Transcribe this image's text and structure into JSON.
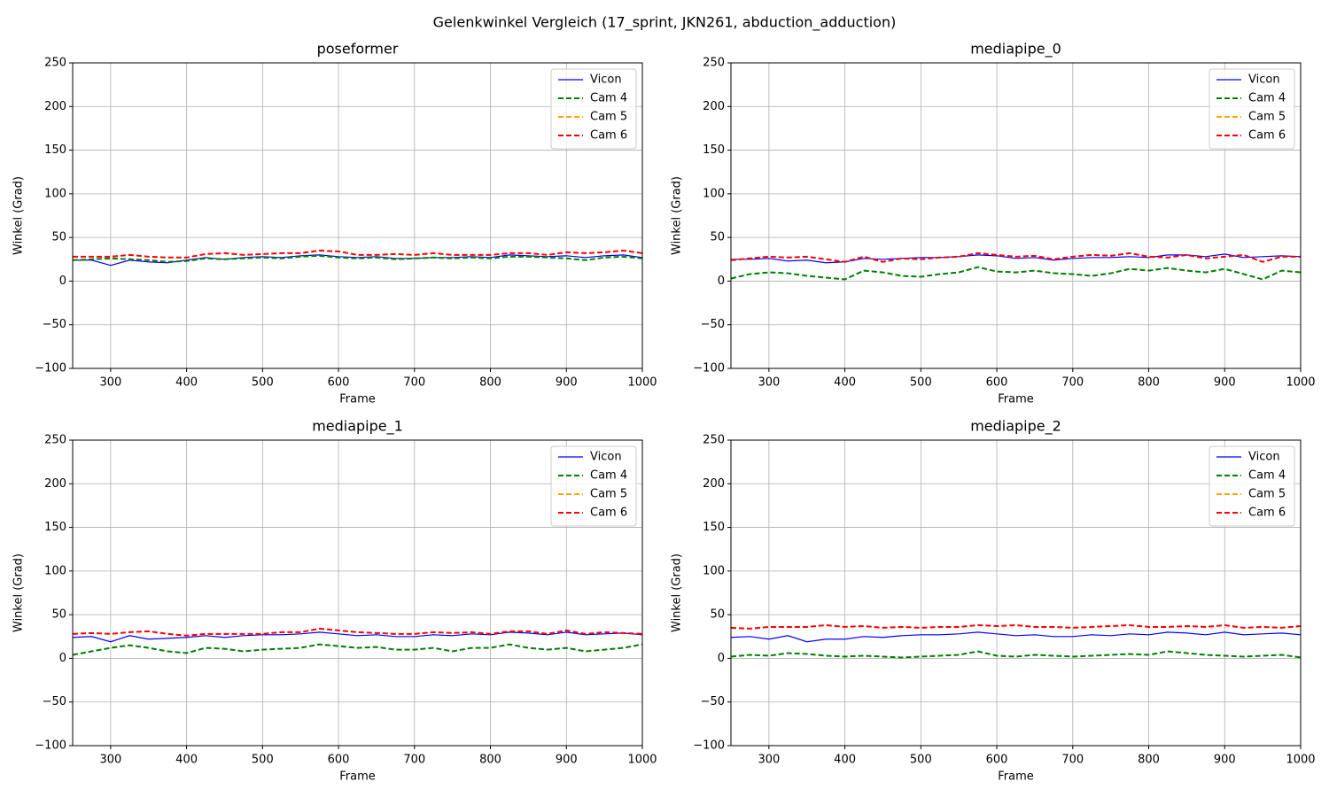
{
  "title": "Gelenkwinkel Vergleich (17_sprint, JKN261, abduction_adduction)",
  "chart_data": [
    {
      "type": "line",
      "title": "poseformer",
      "xlabel": "Frame",
      "ylabel": "Winkel (Grad)",
      "x": [
        250,
        275,
        300,
        325,
        350,
        375,
        400,
        425,
        450,
        475,
        500,
        525,
        550,
        575,
        600,
        625,
        650,
        675,
        700,
        725,
        750,
        775,
        800,
        825,
        850,
        875,
        900,
        925,
        950,
        975,
        1000
      ],
      "series": [
        {
          "name": "Vicon",
          "color": "#0000ff",
          "style": "solid",
          "values": [
            24,
            24,
            18,
            24,
            22,
            21,
            24,
            27,
            25,
            27,
            28,
            27,
            29,
            30,
            28,
            27,
            28,
            26,
            26,
            27,
            27,
            28,
            27,
            30,
            29,
            28,
            29,
            27,
            29,
            30,
            27
          ]
        },
        {
          "name": "Cam 4",
          "color": "#008000",
          "style": "dashed",
          "values": [
            24,
            25,
            26,
            25,
            24,
            22,
            23,
            26,
            25,
            26,
            27,
            26,
            28,
            29,
            27,
            26,
            27,
            25,
            26,
            27,
            26,
            27,
            26,
            28,
            28,
            27,
            26,
            24,
            27,
            28,
            26
          ]
        },
        {
          "name": "Cam 5",
          "color": "#ffa500",
          "style": "dashed",
          "values": [
            null,
            null,
            null,
            null,
            null,
            null,
            null,
            null,
            null,
            null,
            null,
            null,
            null,
            null,
            null,
            null,
            null,
            null,
            null,
            null,
            null,
            null,
            null,
            null,
            null,
            null,
            null,
            null,
            null,
            null,
            null
          ]
        },
        {
          "name": "Cam 6",
          "color": "#ff0000",
          "style": "dashed",
          "values": [
            28,
            28,
            28,
            30,
            28,
            27,
            27,
            31,
            32,
            30,
            31,
            32,
            32,
            35,
            34,
            30,
            30,
            31,
            30,
            32,
            30,
            30,
            30,
            32,
            32,
            30,
            33,
            32,
            33,
            35,
            32
          ]
        }
      ],
      "xlim": [
        250,
        1000
      ],
      "xticks": [
        300,
        400,
        500,
        600,
        700,
        800,
        900,
        1000
      ],
      "ylim": [
        -100,
        250
      ],
      "yticks": [
        {
          "value": -100,
          "label": "−100"
        },
        {
          "value": -50,
          "label": "−50"
        },
        0,
        50,
        100,
        150,
        200,
        250
      ],
      "grid": true,
      "legend": "upper right"
    },
    {
      "type": "line",
      "title": "mediapipe_0",
      "xlabel": "Frame",
      "ylabel": "Winkel (Grad)",
      "x": [
        250,
        275,
        300,
        325,
        350,
        375,
        400,
        425,
        450,
        475,
        500,
        525,
        550,
        575,
        600,
        625,
        650,
        675,
        700,
        725,
        750,
        775,
        800,
        825,
        850,
        875,
        900,
        925,
        950,
        975,
        1000
      ],
      "series": [
        {
          "name": "Vicon",
          "color": "#0000ff",
          "style": "solid",
          "values": [
            25,
            25,
            26,
            23,
            24,
            21,
            22,
            26,
            25,
            26,
            27,
            27,
            28,
            30,
            29,
            26,
            27,
            24,
            26,
            27,
            27,
            28,
            27,
            30,
            30,
            28,
            31,
            27,
            28,
            29,
            28
          ]
        },
        {
          "name": "Cam 4",
          "color": "#008000",
          "style": "dashed",
          "values": [
            3,
            8,
            10,
            9,
            6,
            4,
            2,
            12,
            10,
            6,
            5,
            8,
            10,
            16,
            11,
            10,
            12,
            9,
            8,
            6,
            9,
            14,
            12,
            15,
            12,
            10,
            14,
            8,
            2,
            12,
            10
          ]
        },
        {
          "name": "Cam 5",
          "color": "#ffa500",
          "style": "dashed",
          "values": [
            null,
            null,
            null,
            null,
            null,
            null,
            null,
            null,
            null,
            null,
            null,
            null,
            null,
            null,
            null,
            null,
            null,
            null,
            null,
            null,
            null,
            null,
            null,
            null,
            null,
            null,
            null,
            null,
            null,
            null,
            null
          ]
        },
        {
          "name": "Cam 6",
          "color": "#ff0000",
          "style": "dashed",
          "values": [
            24,
            26,
            28,
            27,
            28,
            25,
            22,
            28,
            22,
            26,
            25,
            27,
            28,
            32,
            30,
            28,
            29,
            25,
            28,
            30,
            29,
            32,
            28,
            27,
            30,
            26,
            28,
            30,
            22,
            28,
            28
          ]
        }
      ],
      "xlim": [
        250,
        1000
      ],
      "xticks": [
        300,
        400,
        500,
        600,
        700,
        800,
        900,
        1000
      ],
      "ylim": [
        -100,
        250
      ],
      "yticks": [
        {
          "value": -100,
          "label": "−100"
        },
        {
          "value": -50,
          "label": "−50"
        },
        0,
        50,
        100,
        150,
        200,
        250
      ],
      "grid": true,
      "legend": "upper right"
    },
    {
      "type": "line",
      "title": "mediapipe_1",
      "xlabel": "Frame",
      "ylabel": "Winkel (Grad)",
      "x": [
        250,
        275,
        300,
        325,
        350,
        375,
        400,
        425,
        450,
        475,
        500,
        525,
        550,
        575,
        600,
        625,
        650,
        675,
        700,
        725,
        750,
        775,
        800,
        825,
        850,
        875,
        900,
        925,
        950,
        975,
        1000
      ],
      "series": [
        {
          "name": "Vicon",
          "color": "#0000ff",
          "style": "solid",
          "values": [
            24,
            25,
            19,
            26,
            22,
            23,
            24,
            26,
            24,
            26,
            27,
            27,
            28,
            30,
            28,
            26,
            27,
            25,
            25,
            27,
            26,
            28,
            27,
            30,
            29,
            27,
            30,
            27,
            28,
            29,
            27
          ]
        },
        {
          "name": "Cam 4",
          "color": "#008000",
          "style": "dashed",
          "values": [
            4,
            8,
            12,
            15,
            12,
            8,
            6,
            12,
            11,
            8,
            10,
            11,
            12,
            16,
            14,
            12,
            13,
            10,
            10,
            12,
            8,
            12,
            12,
            16,
            12,
            10,
            12,
            8,
            10,
            12,
            16
          ]
        },
        {
          "name": "Cam 5",
          "color": "#ffa500",
          "style": "dashed",
          "values": [
            null,
            null,
            null,
            null,
            null,
            null,
            null,
            null,
            null,
            null,
            null,
            null,
            null,
            null,
            null,
            null,
            null,
            null,
            null,
            null,
            null,
            null,
            null,
            null,
            null,
            null,
            null,
            null,
            null,
            null,
            null
          ]
        },
        {
          "name": "Cam 6",
          "color": "#ff0000",
          "style": "dashed",
          "values": [
            28,
            29,
            28,
            30,
            31,
            28,
            26,
            28,
            28,
            28,
            28,
            30,
            30,
            34,
            32,
            30,
            29,
            28,
            28,
            30,
            29,
            30,
            28,
            31,
            31,
            28,
            32,
            28,
            30,
            29,
            28
          ]
        }
      ],
      "xlim": [
        250,
        1000
      ],
      "xticks": [
        300,
        400,
        500,
        600,
        700,
        800,
        900,
        1000
      ],
      "ylim": [
        -100,
        250
      ],
      "yticks": [
        {
          "value": -100,
          "label": "−100"
        },
        {
          "value": -50,
          "label": "−50"
        },
        0,
        50,
        100,
        150,
        200,
        250
      ],
      "grid": true,
      "legend": "upper right"
    },
    {
      "type": "line",
      "title": "mediapipe_2",
      "xlabel": "Frame",
      "ylabel": "Winkel (Grad)",
      "x": [
        250,
        275,
        300,
        325,
        350,
        375,
        400,
        425,
        450,
        475,
        500,
        525,
        550,
        575,
        600,
        625,
        650,
        675,
        700,
        725,
        750,
        775,
        800,
        825,
        850,
        875,
        900,
        925,
        950,
        975,
        1000
      ],
      "series": [
        {
          "name": "Vicon",
          "color": "#0000ff",
          "style": "solid",
          "values": [
            24,
            25,
            22,
            26,
            19,
            22,
            22,
            25,
            24,
            26,
            27,
            27,
            28,
            30,
            28,
            26,
            27,
            25,
            25,
            27,
            26,
            28,
            27,
            30,
            29,
            27,
            30,
            27,
            28,
            29,
            27
          ]
        },
        {
          "name": "Cam 4",
          "color": "#008000",
          "style": "dashed",
          "values": [
            2,
            4,
            3,
            6,
            5,
            3,
            2,
            3,
            2,
            1,
            2,
            3,
            4,
            8,
            3,
            2,
            4,
            3,
            2,
            3,
            4,
            5,
            4,
            8,
            6,
            4,
            3,
            2,
            3,
            4,
            1
          ]
        },
        {
          "name": "Cam 5",
          "color": "#ffa500",
          "style": "dashed",
          "values": [
            null,
            null,
            null,
            null,
            null,
            null,
            null,
            null,
            null,
            null,
            null,
            null,
            null,
            null,
            null,
            null,
            null,
            null,
            null,
            null,
            null,
            null,
            null,
            null,
            null,
            null,
            null,
            null,
            null,
            null,
            null
          ]
        },
        {
          "name": "Cam 6",
          "color": "#ff0000",
          "style": "dashed",
          "values": [
            35,
            34,
            36,
            36,
            36,
            38,
            36,
            37,
            35,
            36,
            35,
            36,
            36,
            38,
            37,
            38,
            36,
            36,
            35,
            36,
            37,
            38,
            36,
            36,
            37,
            36,
            38,
            35,
            36,
            35,
            37
          ]
        }
      ],
      "xlim": [
        250,
        1000
      ],
      "xticks": [
        300,
        400,
        500,
        600,
        700,
        800,
        900,
        1000
      ],
      "ylim": [
        -100,
        250
      ],
      "yticks": [
        {
          "value": -100,
          "label": "−100"
        },
        {
          "value": -50,
          "label": "−50"
        },
        0,
        50,
        100,
        150,
        200,
        250
      ],
      "grid": true,
      "legend": "upper right"
    }
  ]
}
